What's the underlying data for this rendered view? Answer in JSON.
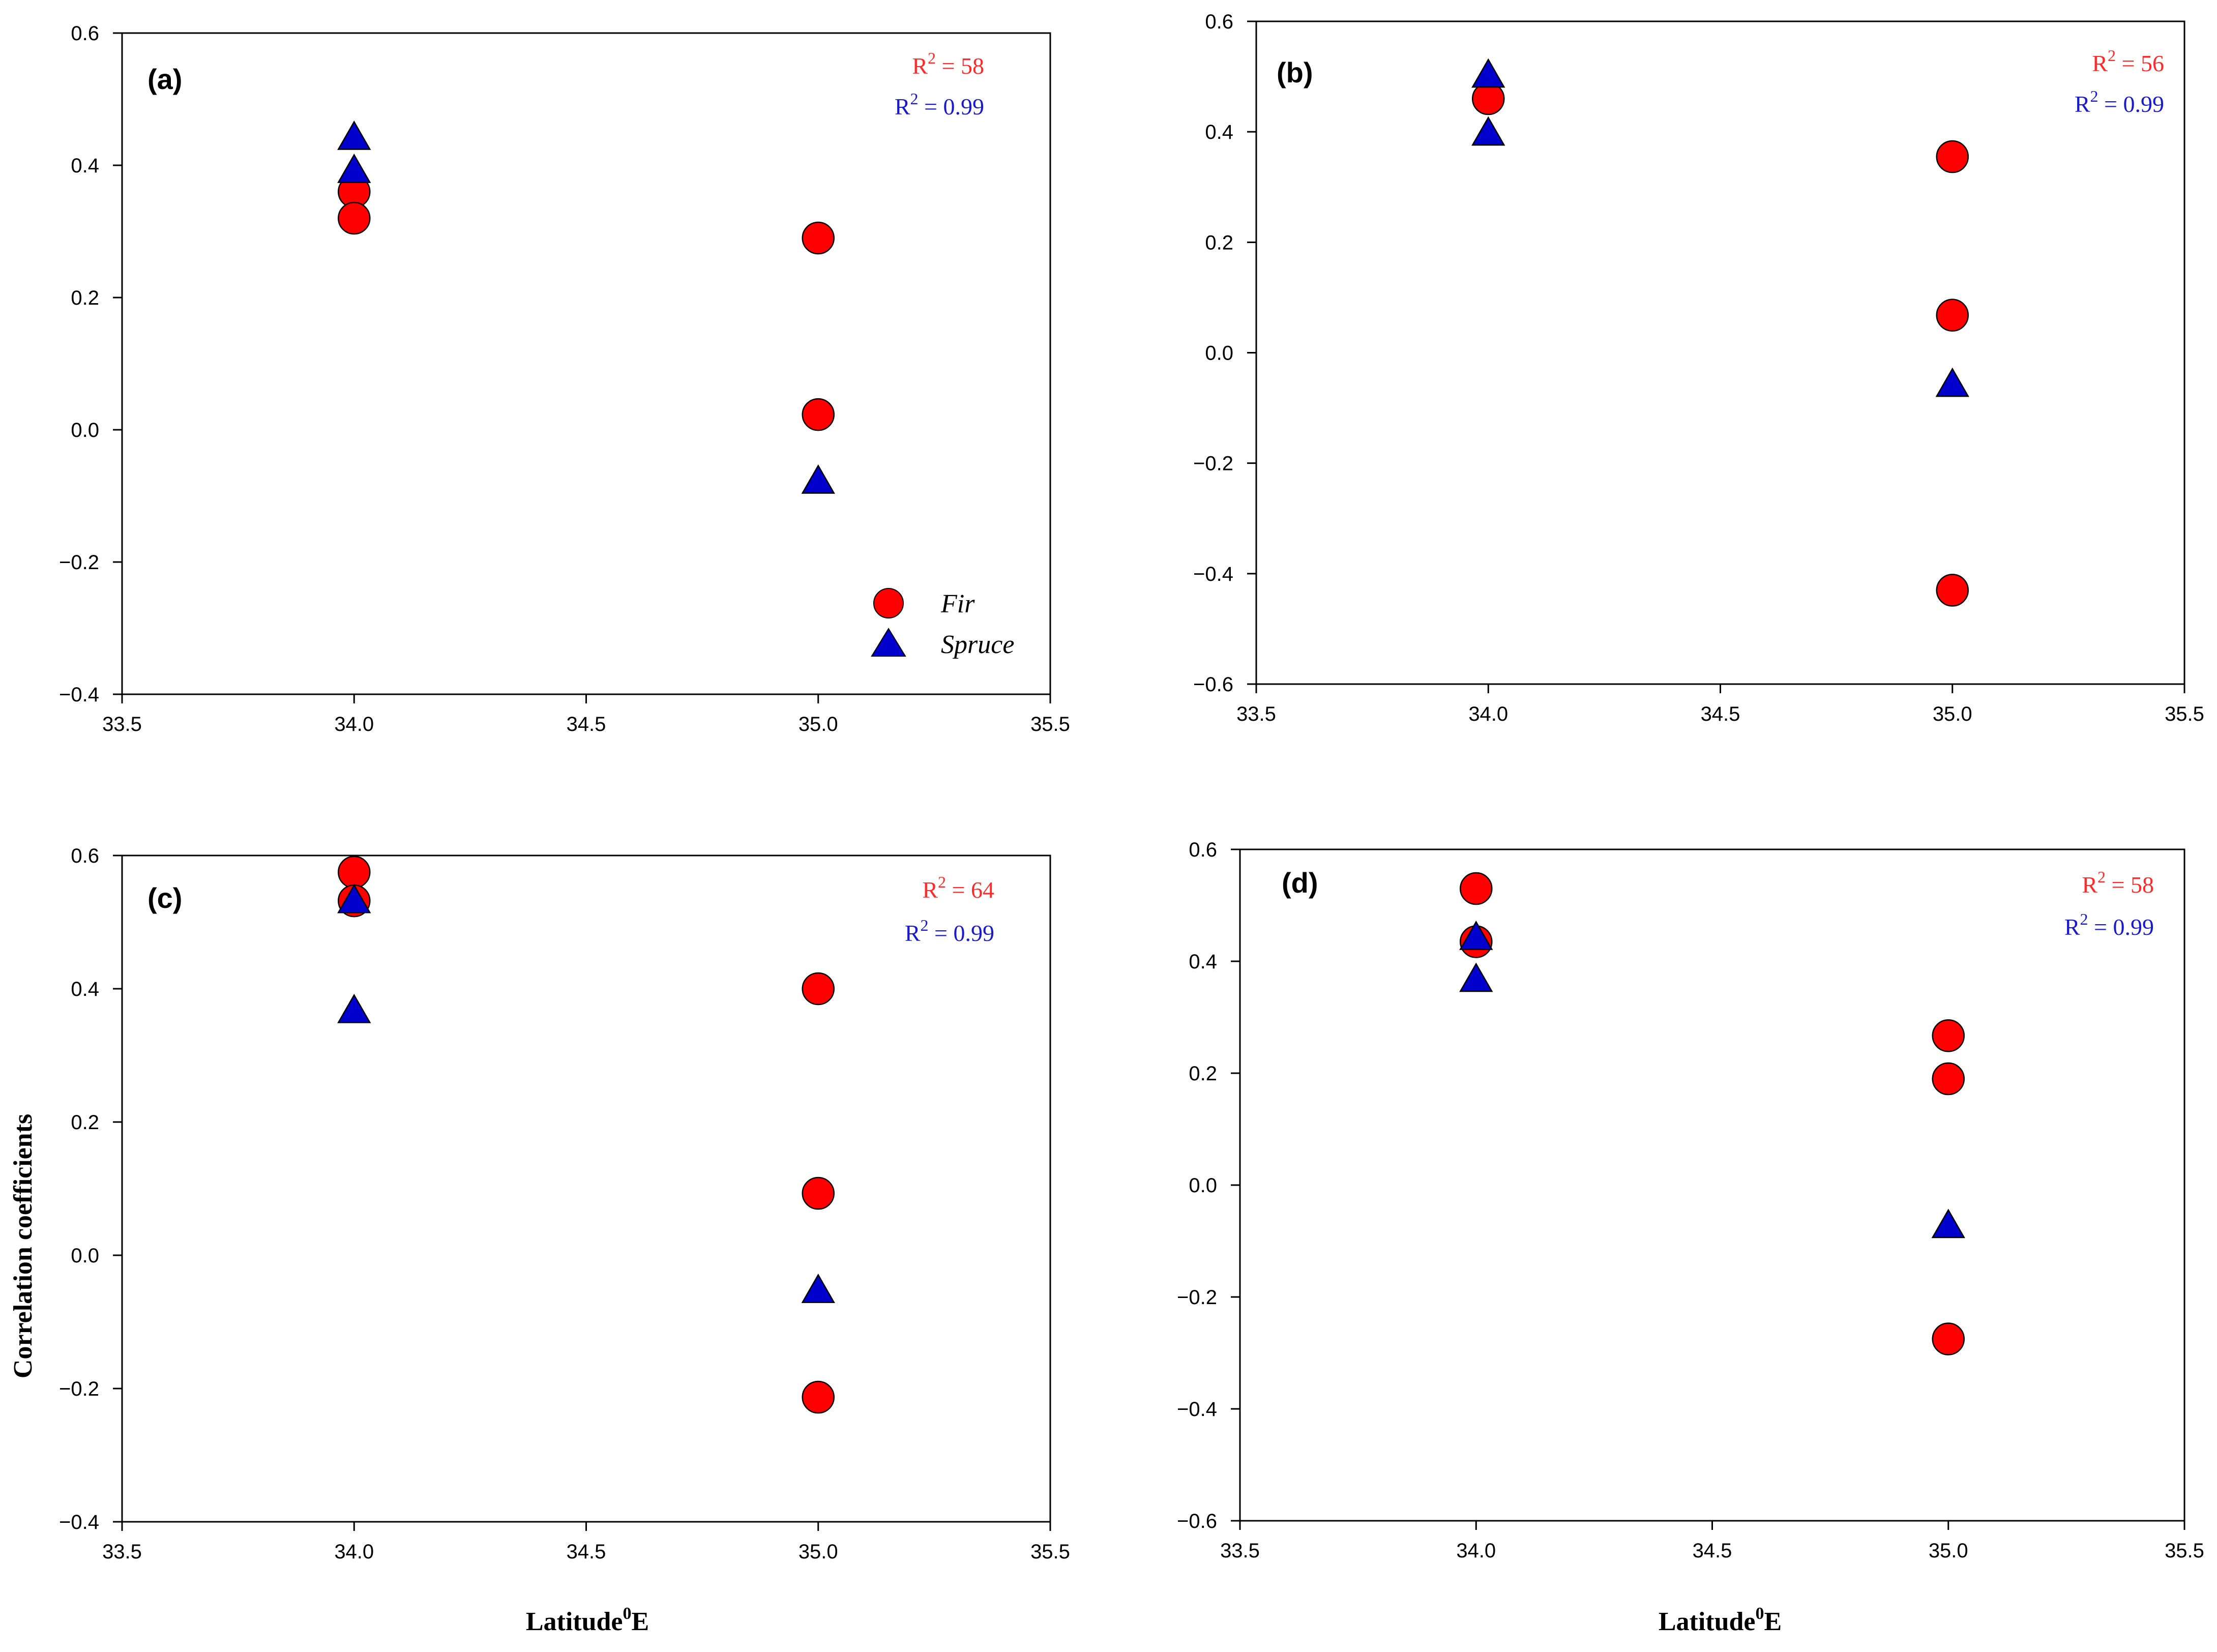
{
  "figure": {
    "x_axis_title": "Latitude",
    "x_axis_title_sup": "0",
    "x_axis_title_suffix": "E",
    "y_axis_title": "Correlation coefficients",
    "legend": {
      "fir": "Fir",
      "spruce": "Spruce"
    },
    "colors": {
      "fir": "#ff0000",
      "spruce": "#0000cc",
      "r2_fir": "#ff2a2a",
      "r2_spruce": "#1a1acc"
    }
  },
  "chart_data": [
    {
      "type": "scatter",
      "panel": "(a)",
      "xlim": [
        33.5,
        35.5
      ],
      "ylim": [
        -0.4,
        0.6
      ],
      "xticks": [
        "33.5",
        "34.0",
        "34.5",
        "35.0",
        "35.5"
      ],
      "yticks": [
        "−0.4",
        "−0.2",
        "0.0",
        "0.2",
        "0.4",
        "0.6"
      ],
      "r2": [
        {
          "prefix": "R",
          "sup": "2",
          "text": " = 58"
        },
        {
          "prefix": "R",
          "sup": "2",
          "text": " = 0.99"
        }
      ],
      "series": [
        {
          "name": "Fir",
          "points": [
            [
              34.0,
              0.36
            ],
            [
              34.0,
              0.32
            ],
            [
              35.0,
              0.29
            ],
            [
              35.0,
              0.023
            ]
          ]
        },
        {
          "name": "Spruce",
          "points": [
            [
              34.0,
              0.44
            ],
            [
              34.0,
              0.39
            ],
            [
              35.0,
              -0.08
            ]
          ]
        }
      ]
    },
    {
      "type": "scatter",
      "panel": "(b)",
      "xlim": [
        33.5,
        35.5
      ],
      "ylim": [
        -0.6,
        0.6
      ],
      "xticks": [
        "33.5",
        "34.0",
        "34.5",
        "35.0",
        "35.5"
      ],
      "yticks": [
        "−0.6",
        "−0.4",
        "−0.2",
        "0.0",
        "0.2",
        "0.4",
        "0.6"
      ],
      "r2": [
        {
          "prefix": "R",
          "sup": "2",
          "text": " = 56"
        },
        {
          "prefix": "R",
          "sup": "2",
          "text": " = 0.99"
        }
      ],
      "series": [
        {
          "name": "Fir",
          "points": [
            [
              34.0,
              0.46
            ],
            [
              35.0,
              0.355
            ],
            [
              35.0,
              0.068
            ],
            [
              35.0,
              -0.43
            ]
          ]
        },
        {
          "name": "Spruce",
          "points": [
            [
              34.0,
              0.5
            ],
            [
              34.0,
              0.395
            ],
            [
              35.0,
              -0.06
            ]
          ]
        }
      ]
    },
    {
      "type": "scatter",
      "panel": "(c)",
      "xlim": [
        33.5,
        35.5
      ],
      "ylim": [
        -0.4,
        0.6
      ],
      "xticks": [
        "33.5",
        "34.0",
        "34.5",
        "35.0",
        "35.5"
      ],
      "yticks": [
        "−0.4",
        "−0.2",
        "0.0",
        "0.2",
        "0.4",
        "0.6"
      ],
      "r2": [
        {
          "prefix": "R",
          "sup": "2",
          "text": " = 64"
        },
        {
          "prefix": "R",
          "sup": "2",
          "text": " = 0.99"
        }
      ],
      "series": [
        {
          "name": "Fir",
          "points": [
            [
              34.0,
              0.575
            ],
            [
              34.0,
              0.532
            ],
            [
              35.0,
              0.4
            ],
            [
              35.0,
              0.093
            ],
            [
              35.0,
              -0.213
            ]
          ]
        },
        {
          "name": "Spruce",
          "points": [
            [
              34.0,
              0.53
            ],
            [
              34.0,
              0.365
            ],
            [
              35.0,
              -0.055
            ]
          ]
        }
      ]
    },
    {
      "type": "scatter",
      "panel": "(d)",
      "xlim": [
        33.5,
        35.5
      ],
      "ylim": [
        -0.6,
        0.6
      ],
      "xticks": [
        "33.5",
        "34.0",
        "34.5",
        "35.0",
        "35.5"
      ],
      "yticks": [
        "−0.6",
        "−0.4",
        "−0.2",
        "0.0",
        "0.2",
        "0.4",
        "0.6"
      ],
      "r2": [
        {
          "prefix": "R",
          "sup": "2",
          "text": " = 58"
        },
        {
          "prefix": "R",
          "sup": "2",
          "text": " = 0.99"
        }
      ],
      "series": [
        {
          "name": "Fir",
          "points": [
            [
              34.0,
              0.53
            ],
            [
              34.0,
              0.435
            ],
            [
              35.0,
              0.267
            ],
            [
              35.0,
              0.19
            ],
            [
              35.0,
              -0.275
            ]
          ]
        },
        {
          "name": "Spruce",
          "points": [
            [
              34.0,
              0.44
            ],
            [
              34.0,
              0.365
            ],
            [
              35.0,
              -0.075
            ]
          ]
        }
      ]
    }
  ]
}
